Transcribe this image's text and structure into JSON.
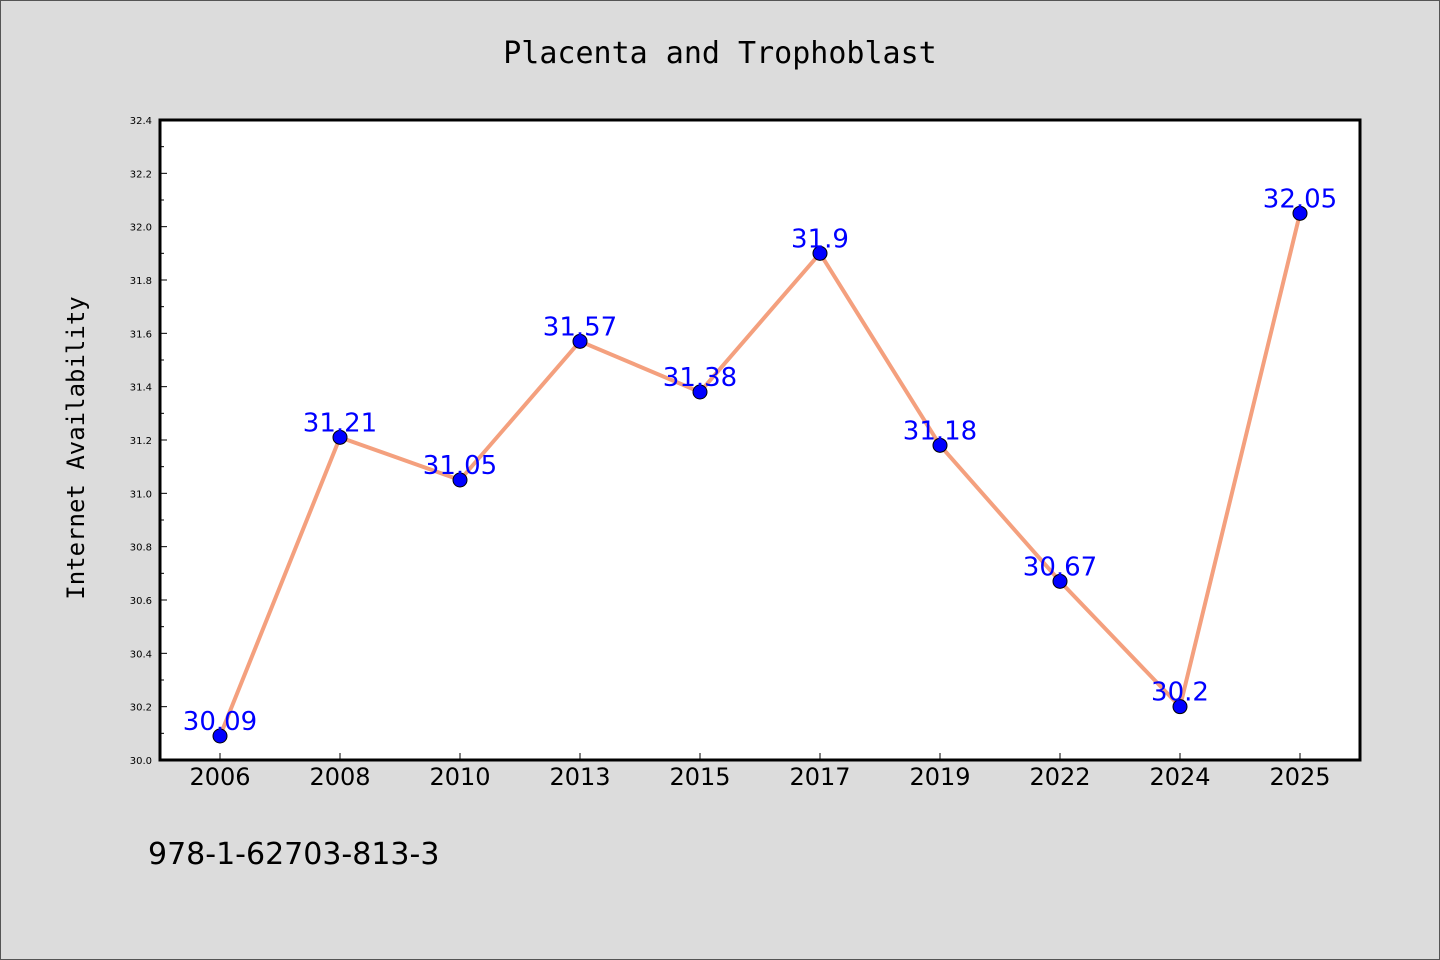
{
  "chart_data": {
    "type": "line",
    "title": "Placenta and Trophoblast",
    "xlabel": "",
    "ylabel": "Internet Availability",
    "categories": [
      "2006",
      "2008",
      "2010",
      "2013",
      "2015",
      "2017",
      "2019",
      "2022",
      "2024",
      "2025"
    ],
    "series": [
      {
        "values": [
          30.09,
          31.21,
          31.05,
          31.57,
          31.38,
          31.9,
          31.18,
          30.67,
          30.2,
          32.05
        ],
        "labels": [
          "30.09",
          "31.21",
          "31.05",
          "31.57",
          "31.38",
          "31.9",
          "31.18",
          "30.67",
          "30.2",
          "32.05"
        ]
      }
    ],
    "ylim": [
      30.0,
      32.4
    ],
    "yticks": [
      "30.0",
      "30.2",
      "30.4",
      "30.6",
      "30.8",
      "31.0",
      "31.2",
      "31.4",
      "31.6",
      "31.8",
      "32.0",
      "32.2",
      "32.4"
    ],
    "grid": false,
    "line_color": "#f4a07e",
    "marker_color": "#0000ff",
    "label_color": "#0000ff",
    "background_color": "#dcdcdc",
    "plot_background_color": "#ffffff"
  },
  "footer": {
    "id_text": "978-1-62703-813-3"
  }
}
